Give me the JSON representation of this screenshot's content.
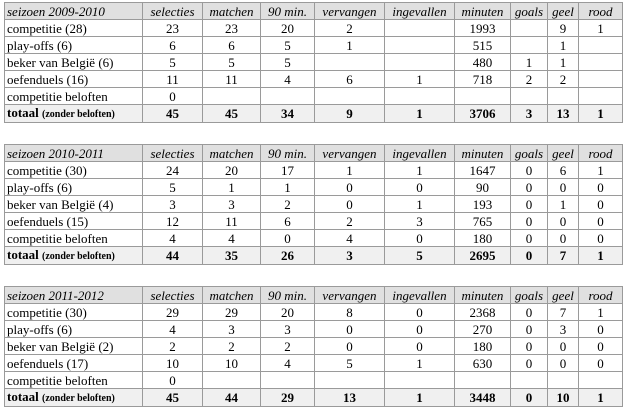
{
  "headers": [
    "selecties",
    "matchen",
    "90 min.",
    "vervangen",
    "ingevallen",
    "minuten",
    "goals",
    "geel",
    "rood"
  ],
  "seasons": [
    {
      "title": "seizoen 2009-2010",
      "rows": [
        {
          "label": "competitie (28)",
          "values": [
            "23",
            "23",
            "20",
            "2",
            "",
            "1993",
            "",
            "9",
            "1"
          ]
        },
        {
          "label": "play-offs (6)",
          "values": [
            "6",
            "6",
            "5",
            "1",
            "",
            "515",
            "",
            "1",
            ""
          ]
        },
        {
          "label": "beker van België (6)",
          "values": [
            "5",
            "5",
            "5",
            "",
            "",
            "480",
            "1",
            "1",
            ""
          ]
        },
        {
          "label": "oefenduels (16)",
          "values": [
            "11",
            "11",
            "4",
            "6",
            "1",
            "718",
            "2",
            "2",
            ""
          ]
        },
        {
          "label": "competitie beloften",
          "values": [
            "0",
            "",
            "",
            "",
            "",
            "",
            "",
            "",
            ""
          ]
        }
      ],
      "total": {
        "label": "totaal",
        "note": "(zonder beloften)",
        "values": [
          "45",
          "45",
          "34",
          "9",
          "1",
          "3706",
          "3",
          "13",
          "1"
        ]
      }
    },
    {
      "title": "seizoen 2010-2011",
      "rows": [
        {
          "label": "competitie (30)",
          "values": [
            "24",
            "20",
            "17",
            "1",
            "1",
            "1647",
            "0",
            "6",
            "1"
          ]
        },
        {
          "label": "play-offs (6)",
          "values": [
            "5",
            "1",
            "1",
            "0",
            "0",
            "90",
            "0",
            "0",
            "0"
          ]
        },
        {
          "label": "beker van België (4)",
          "values": [
            "3",
            "3",
            "2",
            "0",
            "1",
            "193",
            "0",
            "1",
            "0"
          ]
        },
        {
          "label": "oefenduels (15)",
          "values": [
            "12",
            "11",
            "6",
            "2",
            "3",
            "765",
            "0",
            "0",
            "0"
          ]
        },
        {
          "label": "competitie beloften",
          "values": [
            "4",
            "4",
            "0",
            "4",
            "0",
            "180",
            "0",
            "0",
            "0"
          ]
        }
      ],
      "total": {
        "label": "totaal",
        "note": "(zonder beloften)",
        "values": [
          "44",
          "35",
          "26",
          "3",
          "5",
          "2695",
          "0",
          "7",
          "1"
        ]
      }
    },
    {
      "title": "seizoen 2011-2012",
      "rows": [
        {
          "label": "competitie (30)",
          "values": [
            "29",
            "29",
            "20",
            "8",
            "0",
            "2368",
            "0",
            "7",
            "1"
          ]
        },
        {
          "label": "play-offs (6)",
          "values": [
            "4",
            "3",
            "3",
            "0",
            "0",
            "270",
            "0",
            "3",
            "0"
          ]
        },
        {
          "label": "beker van België (2)",
          "values": [
            "2",
            "2",
            "2",
            "0",
            "0",
            "180",
            "0",
            "0",
            "0"
          ]
        },
        {
          "label": "oefenduels (17)",
          "values": [
            "10",
            "10",
            "4",
            "5",
            "1",
            "630",
            "0",
            "0",
            "0"
          ]
        },
        {
          "label": "competitie beloften",
          "values": [
            "0",
            "",
            "",
            "",
            "",
            "",
            "",
            "",
            ""
          ]
        }
      ],
      "total": {
        "label": "totaal",
        "note": "(zonder beloften)",
        "values": [
          "45",
          "44",
          "29",
          "13",
          "1",
          "3448",
          "0",
          "10",
          "1"
        ]
      }
    }
  ]
}
